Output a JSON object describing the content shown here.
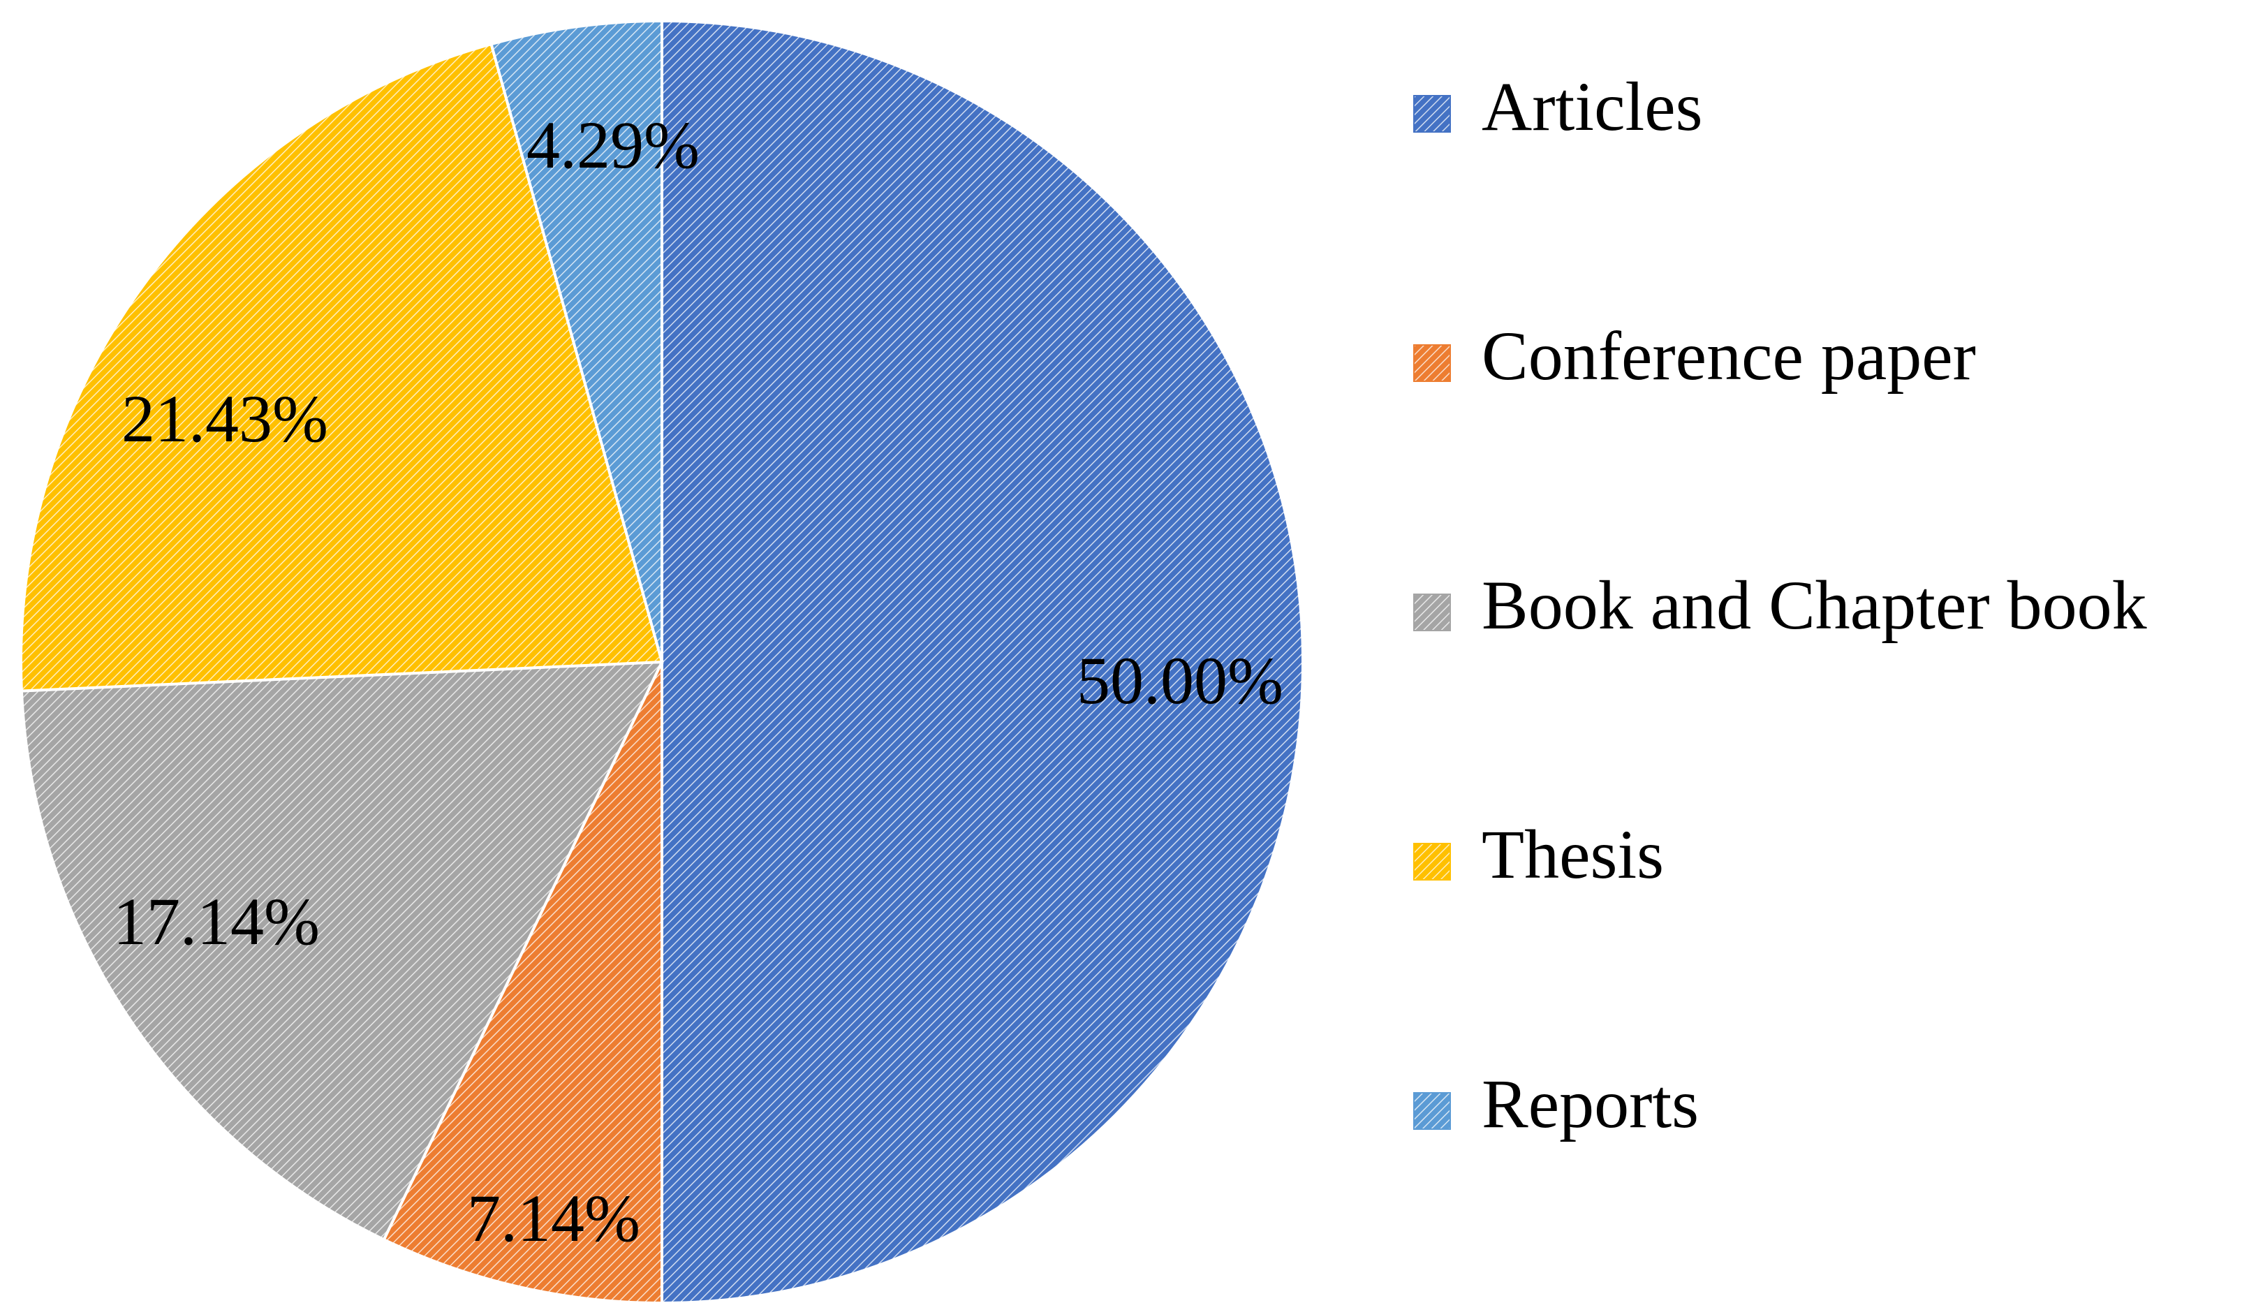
{
  "chart_data": {
    "type": "pie",
    "title": "",
    "legend_position": "right",
    "slices": [
      {
        "label": "Articles",
        "value": 50.0,
        "display": "50.00%",
        "color": "#4472C4"
      },
      {
        "label": "Conference paper",
        "value": 7.14,
        "display": "7.14%",
        "color": "#ED7D31"
      },
      {
        "label": "Book and Chapter book",
        "value": 17.14,
        "display": "17.14%",
        "color": "#A5A5A5"
      },
      {
        "label": "Thesis",
        "value": 21.43,
        "display": "21.43%",
        "color": "#FFC000"
      },
      {
        "label": "Reports",
        "value": 4.29,
        "display": "4.29%",
        "color": "#5B9BD5"
      }
    ],
    "start": "12 o'clock",
    "direction": "clockwise",
    "fill": "diagonal hatch"
  }
}
